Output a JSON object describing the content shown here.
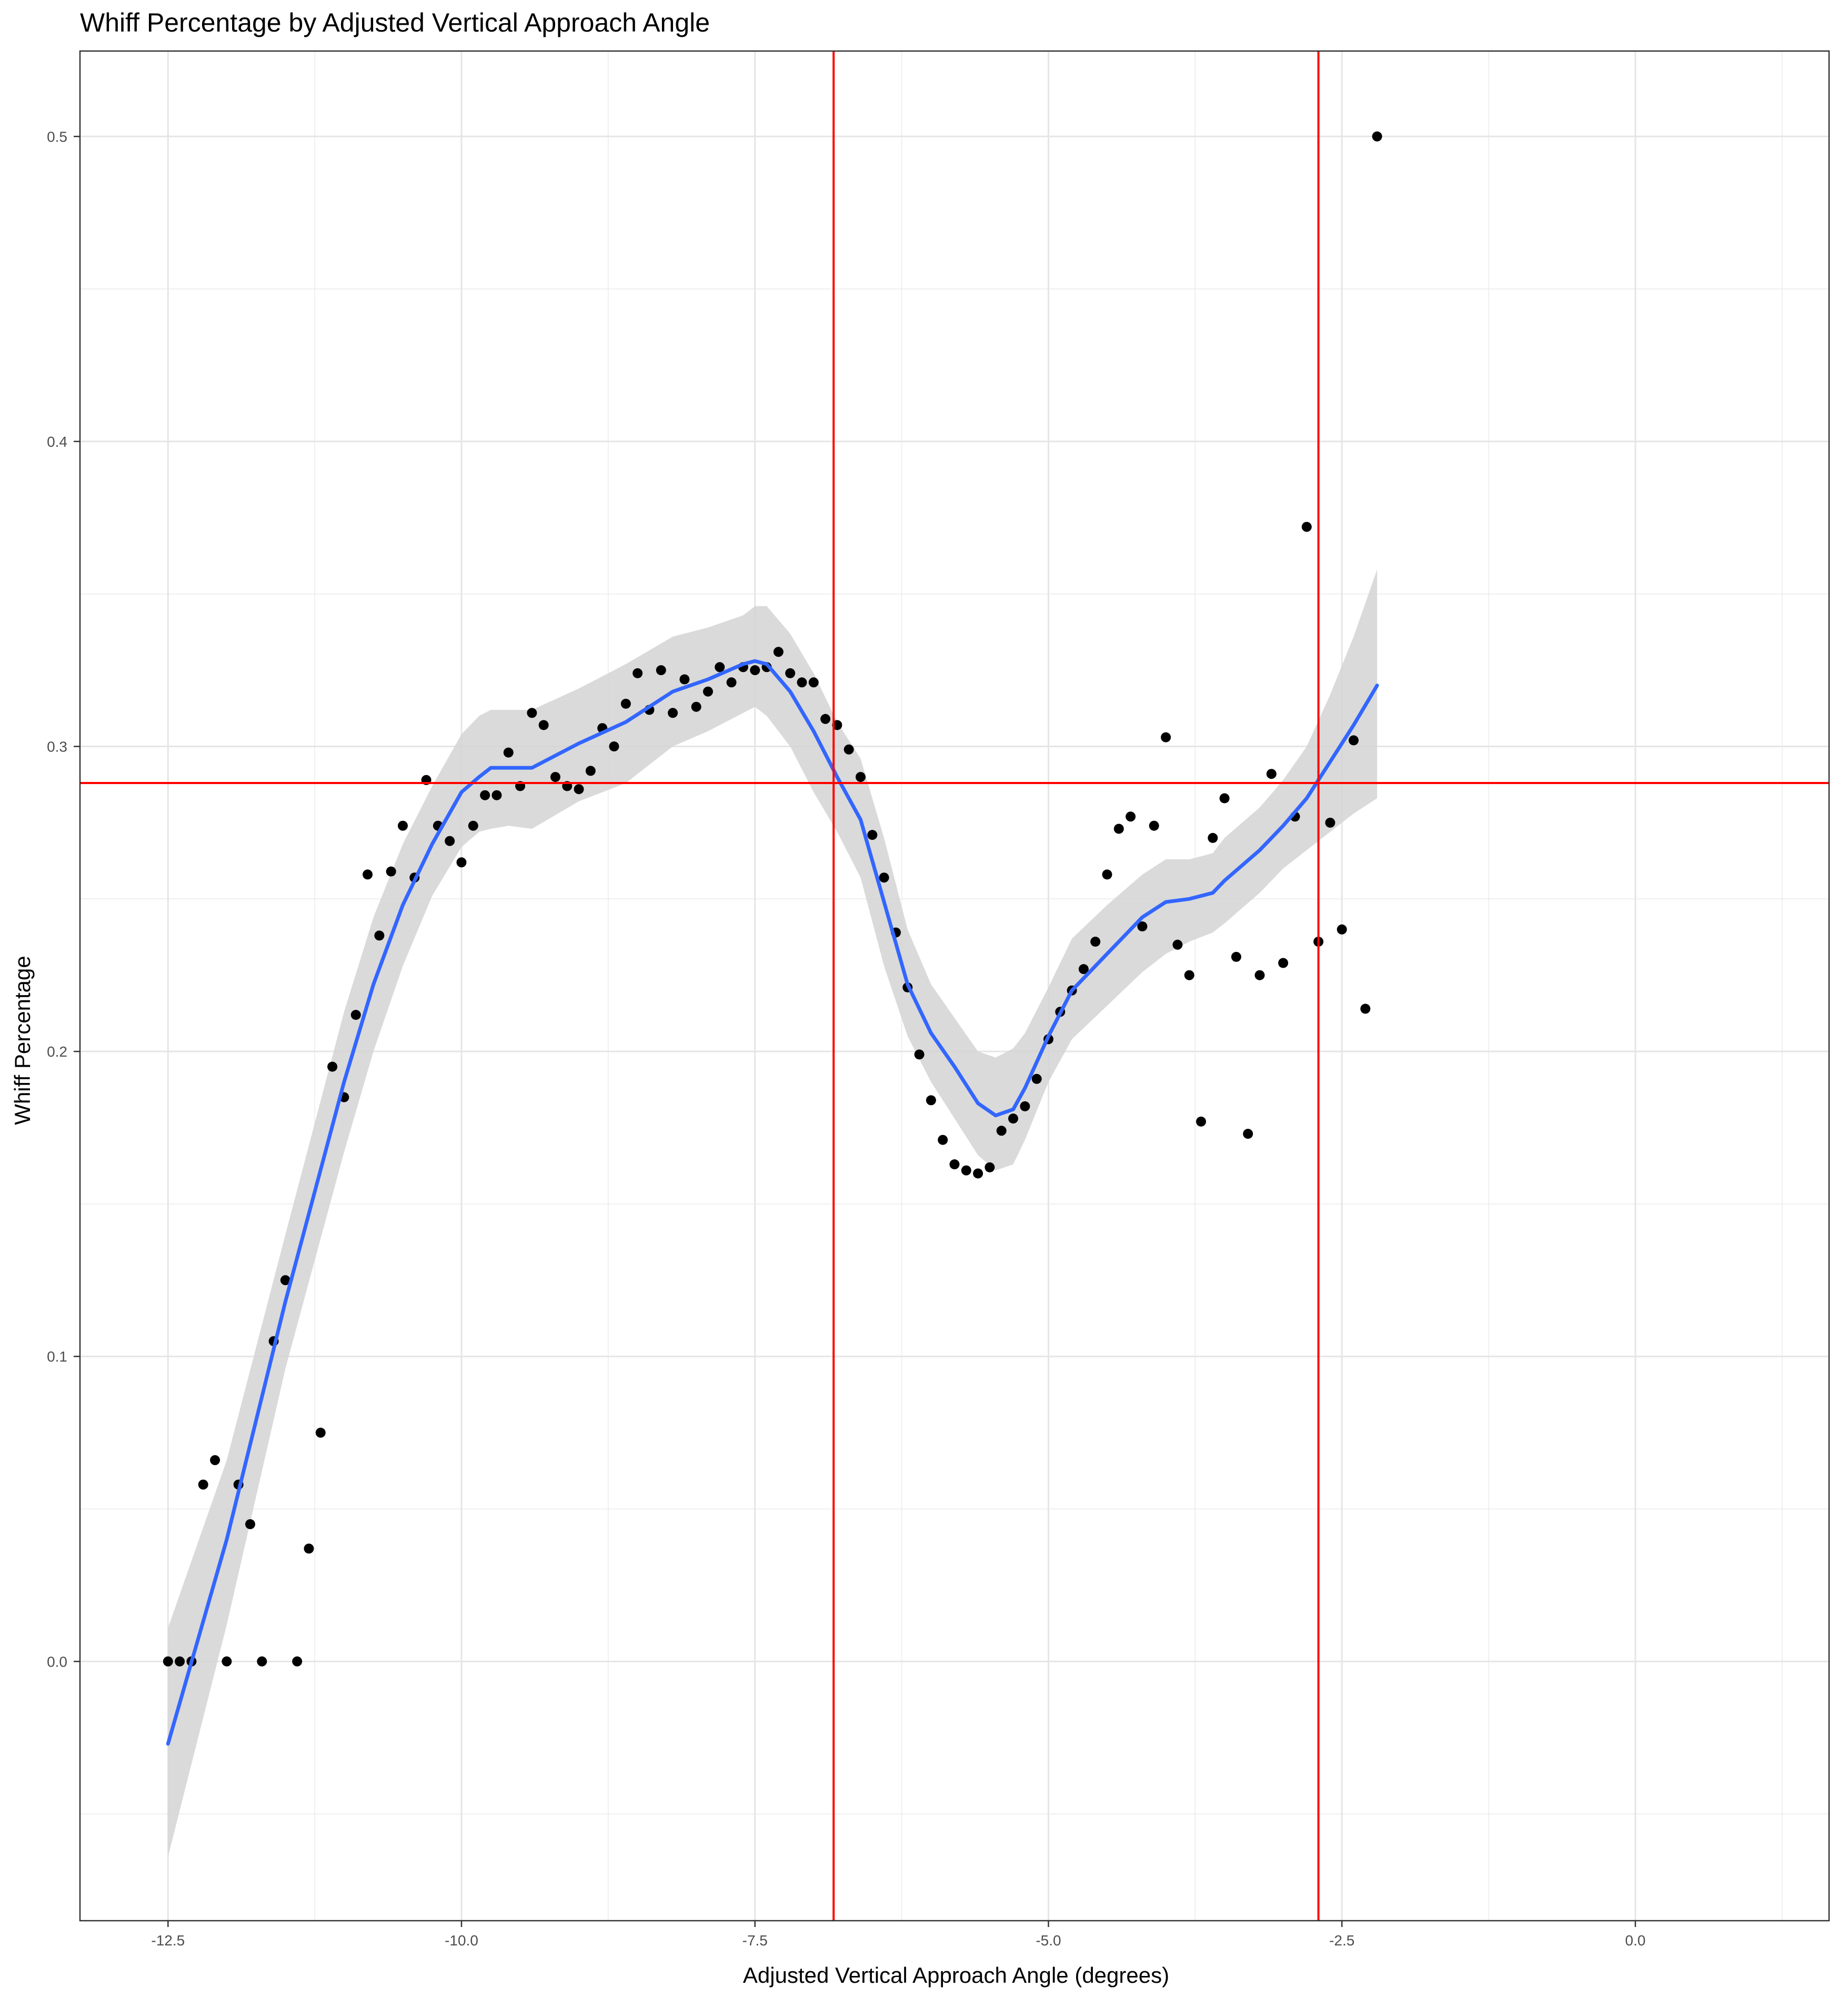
{
  "chart_data": {
    "type": "scatter",
    "title": "Whiff Percentage by Adjusted Vertical Approach Angle",
    "xlabel": "Adjusted Vertical Approach Angle (degrees)",
    "ylabel": "Whiff Percentage",
    "xlim": [
      -13.25,
      1.65
    ],
    "ylim": [
      -0.085,
      0.528
    ],
    "x_ticks": [
      -12.5,
      -10.0,
      -7.5,
      -5.0,
      -2.5,
      0.0
    ],
    "x_tick_labels": [
      "-12.5",
      "-10.0",
      "-7.5",
      "-5.0",
      "-2.5",
      "0.0"
    ],
    "y_ticks": [
      0.0,
      0.1,
      0.2,
      0.3,
      0.4,
      0.5
    ],
    "y_tick_labels": [
      "0.0",
      "0.1",
      "0.2",
      "0.3",
      "0.4",
      "0.5"
    ],
    "grid": true,
    "colors": {
      "points": "#000000",
      "smooth_line": "#3366ff",
      "confidence_band": "#d3d3d3",
      "reference_lines": "#ff0000"
    },
    "points": [
      [
        -12.5,
        0.0
      ],
      [
        -12.4,
        0.0
      ],
      [
        -12.3,
        0.0
      ],
      [
        -12.2,
        0.058
      ],
      [
        -12.1,
        0.066
      ],
      [
        -12.0,
        0.0
      ],
      [
        -11.9,
        0.058
      ],
      [
        -11.8,
        0.045
      ],
      [
        -11.7,
        0.0
      ],
      [
        -11.6,
        0.105
      ],
      [
        -11.5,
        0.125
      ],
      [
        -11.4,
        0.0
      ],
      [
        -11.3,
        0.037
      ],
      [
        -11.2,
        0.075
      ],
      [
        -11.1,
        0.195
      ],
      [
        -11.0,
        0.185
      ],
      [
        -10.9,
        0.212
      ],
      [
        -10.8,
        0.258
      ],
      [
        -10.7,
        0.238
      ],
      [
        -10.6,
        0.259
      ],
      [
        -10.5,
        0.274
      ],
      [
        -10.4,
        0.257
      ],
      [
        -10.3,
        0.289
      ],
      [
        -10.2,
        0.274
      ],
      [
        -10.1,
        0.269
      ],
      [
        -10.0,
        0.262
      ],
      [
        -9.9,
        0.274
      ],
      [
        -9.8,
        0.284
      ],
      [
        -9.7,
        0.284
      ],
      [
        -9.6,
        0.298
      ],
      [
        -9.5,
        0.287
      ],
      [
        -9.4,
        0.311
      ],
      [
        -9.3,
        0.307
      ],
      [
        -9.2,
        0.29
      ],
      [
        -9.1,
        0.287
      ],
      [
        -9.0,
        0.286
      ],
      [
        -8.9,
        0.292
      ],
      [
        -8.8,
        0.306
      ],
      [
        -8.7,
        0.3
      ],
      [
        -8.6,
        0.314
      ],
      [
        -8.5,
        0.324
      ],
      [
        -8.4,
        0.312
      ],
      [
        -8.3,
        0.325
      ],
      [
        -8.2,
        0.311
      ],
      [
        -8.1,
        0.322
      ],
      [
        -8.0,
        0.313
      ],
      [
        -7.9,
        0.318
      ],
      [
        -7.8,
        0.326
      ],
      [
        -7.7,
        0.321
      ],
      [
        -7.6,
        0.326
      ],
      [
        -7.5,
        0.325
      ],
      [
        -7.4,
        0.326
      ],
      [
        -7.3,
        0.331
      ],
      [
        -7.2,
        0.324
      ],
      [
        -7.1,
        0.321
      ],
      [
        -7.0,
        0.321
      ],
      [
        -6.9,
        0.309
      ],
      [
        -6.8,
        0.307
      ],
      [
        -6.7,
        0.299
      ],
      [
        -6.6,
        0.29
      ],
      [
        -6.5,
        0.271
      ],
      [
        -6.4,
        0.257
      ],
      [
        -6.3,
        0.239
      ],
      [
        -6.2,
        0.221
      ],
      [
        -6.1,
        0.199
      ],
      [
        -6.0,
        0.184
      ],
      [
        -5.9,
        0.171
      ],
      [
        -5.8,
        0.163
      ],
      [
        -5.7,
        0.161
      ],
      [
        -5.6,
        0.16
      ],
      [
        -5.5,
        0.162
      ],
      [
        -5.4,
        0.174
      ],
      [
        -5.3,
        0.178
      ],
      [
        -5.2,
        0.182
      ],
      [
        -5.1,
        0.191
      ],
      [
        -5.0,
        0.204
      ],
      [
        -4.9,
        0.213
      ],
      [
        -4.8,
        0.22
      ],
      [
        -4.7,
        0.227
      ],
      [
        -4.6,
        0.236
      ],
      [
        -4.5,
        0.258
      ],
      [
        -4.4,
        0.273
      ],
      [
        -4.3,
        0.277
      ],
      [
        -4.2,
        0.241
      ],
      [
        -4.1,
        0.274
      ],
      [
        -4.0,
        0.303
      ],
      [
        -3.9,
        0.235
      ],
      [
        -3.8,
        0.225
      ],
      [
        -3.7,
        0.177
      ],
      [
        -3.6,
        0.27
      ],
      [
        -3.5,
        0.283
      ],
      [
        -3.4,
        0.231
      ],
      [
        -3.3,
        0.173
      ],
      [
        -3.2,
        0.225
      ],
      [
        -3.1,
        0.291
      ],
      [
        -3.0,
        0.229
      ],
      [
        -2.9,
        0.277
      ],
      [
        -2.8,
        0.372
      ],
      [
        -2.7,
        0.236
      ],
      [
        -2.6,
        0.275
      ],
      [
        -2.5,
        0.24
      ],
      [
        -2.4,
        0.302
      ],
      [
        -2.3,
        0.214
      ],
      [
        -2.2,
        0.5
      ]
    ],
    "smooth": {
      "x": [
        -12.5,
        -12.0,
        -11.5,
        -11.0,
        -10.75,
        -10.5,
        -10.25,
        -10.0,
        -9.85,
        -9.75,
        -9.6,
        -9.4,
        -9.0,
        -8.6,
        -8.2,
        -7.9,
        -7.6,
        -7.5,
        -7.4,
        -7.2,
        -7.0,
        -6.8,
        -6.6,
        -6.4,
        -6.2,
        -6.0,
        -5.8,
        -5.6,
        -5.45,
        -5.3,
        -5.2,
        -5.0,
        -4.8,
        -4.5,
        -4.2,
        -4.0,
        -3.8,
        -3.6,
        -3.5,
        -3.2,
        -3.0,
        -2.8,
        -2.6,
        -2.4,
        -2.2
      ],
      "y": [
        -0.027,
        0.04,
        0.118,
        0.19,
        0.222,
        0.248,
        0.268,
        0.285,
        0.29,
        0.293,
        0.293,
        0.293,
        0.301,
        0.308,
        0.318,
        0.322,
        0.327,
        0.328,
        0.327,
        0.318,
        0.305,
        0.29,
        0.276,
        0.249,
        0.222,
        0.206,
        0.195,
        0.183,
        0.179,
        0.181,
        0.188,
        0.205,
        0.22,
        0.232,
        0.244,
        0.249,
        0.25,
        0.252,
        0.256,
        0.266,
        0.274,
        0.283,
        0.295,
        0.307,
        0.32
      ],
      "lower": [
        -0.064,
        0.012,
        0.096,
        0.167,
        0.2,
        0.228,
        0.251,
        0.267,
        0.272,
        0.273,
        0.274,
        0.273,
        0.282,
        0.288,
        0.3,
        0.305,
        0.311,
        0.313,
        0.31,
        0.3,
        0.285,
        0.272,
        0.257,
        0.228,
        0.205,
        0.19,
        0.178,
        0.166,
        0.161,
        0.163,
        0.171,
        0.19,
        0.204,
        0.215,
        0.226,
        0.232,
        0.236,
        0.239,
        0.242,
        0.252,
        0.26,
        0.266,
        0.272,
        0.278,
        0.283
      ],
      "upper": [
        0.011,
        0.066,
        0.14,
        0.213,
        0.244,
        0.268,
        0.287,
        0.304,
        0.31,
        0.312,
        0.312,
        0.312,
        0.319,
        0.327,
        0.336,
        0.339,
        0.343,
        0.346,
        0.346,
        0.337,
        0.324,
        0.308,
        0.296,
        0.27,
        0.24,
        0.222,
        0.211,
        0.2,
        0.198,
        0.201,
        0.206,
        0.221,
        0.237,
        0.248,
        0.258,
        0.263,
        0.263,
        0.265,
        0.27,
        0.28,
        0.289,
        0.3,
        0.317,
        0.336,
        0.358
      ]
    },
    "reference_lines": {
      "vertical": [
        -6.83,
        -2.7
      ],
      "horizontal": [
        0.288
      ]
    }
  }
}
